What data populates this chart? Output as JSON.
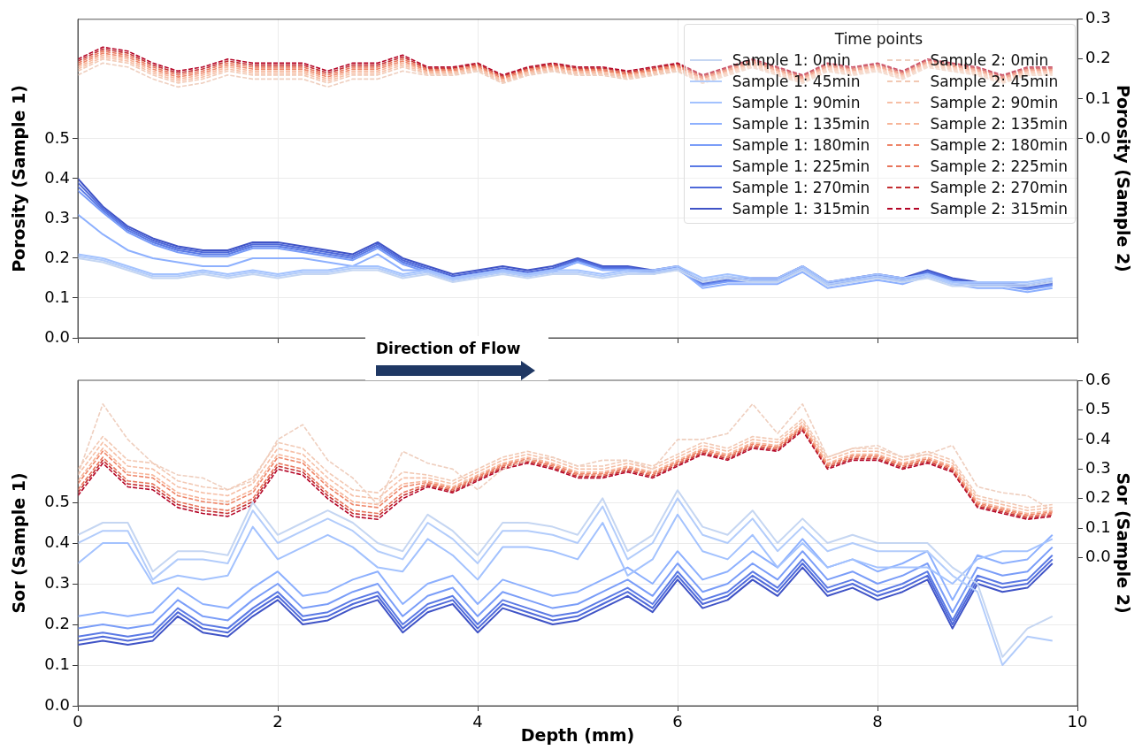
{
  "chart_data": [
    {
      "type": "line",
      "ylabel": "Porosity (Sample 1)",
      "y2label": "Porosity (Sample 2)",
      "legend": "top right",
      "legend_title": "Time points",
      "grid": true,
      "tick_labels": "y",
      "annotations": [
        "Direction of Flow"
      ],
      "xlim": [
        0,
        10
      ],
      "xticks": [
        0,
        2,
        4,
        6,
        8,
        10
      ],
      "ylim": [
        0,
        0.8
      ],
      "yticks": [
        {
          "value": 0,
          "label": "0.0"
        },
        0.1,
        0.2,
        0.3,
        0.4,
        0.5
      ],
      "y2lim": [
        -0.5,
        0.3
      ],
      "y2ticks": [
        {
          "value": 0,
          "label": "0.0"
        },
        0.1,
        0.2,
        0.3
      ],
      "x": [
        0,
        0.25,
        0.5,
        0.75,
        1,
        1.25,
        1.5,
        1.75,
        2,
        2.25,
        2.5,
        2.75,
        3,
        3.25,
        3.5,
        3.75,
        4,
        4.25,
        4.5,
        4.75,
        5,
        5.25,
        5.5,
        5.75,
        6,
        6.25,
        6.5,
        6.75,
        7,
        7.25,
        7.5,
        7.75,
        8,
        8.25,
        8.5,
        8.75,
        9,
        9.25,
        9.5,
        9.75
      ],
      "series": [
        {
          "name": "Sample 1: 0min",
          "color": "#c5d6f2",
          "axis": "y",
          "line_style": "solid",
          "values": [
            0.2,
            0.19,
            0.17,
            0.15,
            0.15,
            0.16,
            0.15,
            0.16,
            0.15,
            0.16,
            0.16,
            0.17,
            0.17,
            0.15,
            0.16,
            0.14,
            0.15,
            0.16,
            0.15,
            0.16,
            0.16,
            0.15,
            0.16,
            0.16,
            0.17,
            0.14,
            0.15,
            0.14,
            0.14,
            0.17,
            0.13,
            0.14,
            0.15,
            0.14,
            0.15,
            0.13,
            0.13,
            0.13,
            0.13,
            0.14
          ]
        },
        {
          "name": "Sample 1: 45min",
          "color": "#b2ccfb",
          "axis": "y",
          "line_style": "solid",
          "values": [
            0.205,
            0.195,
            0.175,
            0.155,
            0.155,
            0.165,
            0.155,
            0.165,
            0.155,
            0.165,
            0.165,
            0.175,
            0.175,
            0.155,
            0.165,
            0.145,
            0.155,
            0.165,
            0.155,
            0.165,
            0.165,
            0.155,
            0.165,
            0.165,
            0.175,
            0.145,
            0.155,
            0.145,
            0.145,
            0.175,
            0.135,
            0.145,
            0.155,
            0.145,
            0.155,
            0.135,
            0.135,
            0.135,
            0.135,
            0.145
          ]
        },
        {
          "name": "Sample 1: 90min",
          "color": "#a3c2fe",
          "axis": "y",
          "line_style": "solid",
          "values": [
            0.21,
            0.2,
            0.18,
            0.16,
            0.16,
            0.17,
            0.16,
            0.17,
            0.16,
            0.17,
            0.17,
            0.18,
            0.18,
            0.16,
            0.17,
            0.15,
            0.16,
            0.17,
            0.16,
            0.17,
            0.17,
            0.16,
            0.17,
            0.17,
            0.18,
            0.15,
            0.16,
            0.15,
            0.15,
            0.18,
            0.14,
            0.15,
            0.16,
            0.15,
            0.16,
            0.14,
            0.14,
            0.14,
            0.14,
            0.15
          ]
        },
        {
          "name": "Sample 1: 135min",
          "color": "#8db0fe",
          "axis": "y",
          "line_style": "solid",
          "values": [
            0.31,
            0.26,
            0.22,
            0.2,
            0.19,
            0.18,
            0.18,
            0.2,
            0.2,
            0.2,
            0.19,
            0.18,
            0.21,
            0.17,
            0.17,
            0.15,
            0.16,
            0.17,
            0.16,
            0.17,
            0.19,
            0.17,
            0.17,
            0.16,
            0.175,
            0.125,
            0.135,
            0.135,
            0.135,
            0.165,
            0.125,
            0.135,
            0.145,
            0.135,
            0.155,
            0.135,
            0.125,
            0.125,
            0.115,
            0.125
          ]
        },
        {
          "name": "Sample 1: 180min",
          "color": "#7a9df8",
          "axis": "y",
          "line_style": "solid",
          "values": [
            0.37,
            0.315,
            0.265,
            0.235,
            0.215,
            0.205,
            0.205,
            0.225,
            0.225,
            0.215,
            0.205,
            0.195,
            0.225,
            0.185,
            0.165,
            0.145,
            0.155,
            0.165,
            0.155,
            0.165,
            0.191,
            0.171,
            0.171,
            0.161,
            0.171,
            0.131,
            0.141,
            0.141,
            0.141,
            0.171,
            0.131,
            0.141,
            0.151,
            0.141,
            0.161,
            0.141,
            0.131,
            0.131,
            0.121,
            0.131
          ]
        },
        {
          "name": "Sample 1: 225min",
          "color": "#5b7ae5",
          "axis": "y",
          "line_style": "solid",
          "values": [
            0.38,
            0.32,
            0.27,
            0.24,
            0.22,
            0.21,
            0.21,
            0.23,
            0.23,
            0.22,
            0.21,
            0.2,
            0.23,
            0.19,
            0.17,
            0.15,
            0.16,
            0.17,
            0.16,
            0.17,
            0.194,
            0.174,
            0.174,
            0.164,
            0.174,
            0.134,
            0.144,
            0.144,
            0.144,
            0.174,
            0.134,
            0.144,
            0.154,
            0.144,
            0.164,
            0.144,
            0.134,
            0.134,
            0.124,
            0.134
          ]
        },
        {
          "name": "Sample 1: 270min",
          "color": "#4f69d9",
          "axis": "y",
          "line_style": "solid",
          "values": [
            0.39,
            0.325,
            0.275,
            0.245,
            0.225,
            0.215,
            0.215,
            0.235,
            0.235,
            0.225,
            0.215,
            0.205,
            0.235,
            0.195,
            0.175,
            0.155,
            0.165,
            0.175,
            0.165,
            0.175,
            0.197,
            0.177,
            0.177,
            0.167,
            0.177,
            0.137,
            0.147,
            0.147,
            0.147,
            0.177,
            0.137,
            0.147,
            0.157,
            0.147,
            0.167,
            0.147,
            0.137,
            0.137,
            0.127,
            0.137
          ]
        },
        {
          "name": "Sample 1: 315min",
          "color": "#3f53c6",
          "axis": "y",
          "line_style": "solid",
          "values": [
            0.4,
            0.33,
            0.28,
            0.25,
            0.23,
            0.22,
            0.22,
            0.24,
            0.24,
            0.23,
            0.22,
            0.21,
            0.24,
            0.2,
            0.18,
            0.16,
            0.17,
            0.18,
            0.17,
            0.18,
            0.2,
            0.18,
            0.18,
            0.17,
            0.18,
            0.14,
            0.15,
            0.15,
            0.15,
            0.18,
            0.14,
            0.15,
            0.16,
            0.15,
            0.17,
            0.15,
            0.14,
            0.14,
            0.13,
            0.14
          ]
        },
        {
          "name": "Sample 2: 0min",
          "color": "#efcfbf",
          "axis": "y2",
          "line_style": "dashed",
          "values": [
            0.16,
            0.19,
            0.18,
            0.15,
            0.13,
            0.14,
            0.16,
            0.15,
            0.15,
            0.15,
            0.13,
            0.15,
            0.15,
            0.17,
            0.159,
            0.159,
            0.169,
            0.139,
            0.159,
            0.169,
            0.159,
            0.159,
            0.149,
            0.159,
            0.169,
            0.139,
            0.159,
            0.179,
            0.159,
            0.139,
            0.169,
            0.159,
            0.169,
            0.149,
            0.179,
            0.169,
            0.159,
            0.139,
            0.159,
            0.159
          ]
        },
        {
          "name": "Sample 2: 45min",
          "color": "#f2c9b4",
          "axis": "y2",
          "line_style": "dashed",
          "values": [
            0.17,
            0.2,
            0.19,
            0.16,
            0.14,
            0.15,
            0.17,
            0.16,
            0.16,
            0.16,
            0.14,
            0.16,
            0.16,
            0.18,
            0.162,
            0.162,
            0.172,
            0.142,
            0.162,
            0.172,
            0.162,
            0.162,
            0.152,
            0.162,
            0.172,
            0.142,
            0.162,
            0.182,
            0.162,
            0.142,
            0.172,
            0.162,
            0.172,
            0.152,
            0.182,
            0.172,
            0.162,
            0.142,
            0.162,
            0.162
          ]
        },
        {
          "name": "Sample 2: 90min",
          "color": "#f6bfa6",
          "axis": "y2",
          "line_style": "dashed",
          "values": [
            0.175,
            0.205,
            0.195,
            0.165,
            0.145,
            0.155,
            0.175,
            0.165,
            0.165,
            0.165,
            0.145,
            0.165,
            0.165,
            0.185,
            0.165,
            0.165,
            0.175,
            0.145,
            0.165,
            0.175,
            0.165,
            0.165,
            0.155,
            0.165,
            0.175,
            0.145,
            0.165,
            0.185,
            0.165,
            0.145,
            0.175,
            0.165,
            0.175,
            0.155,
            0.185,
            0.175,
            0.165,
            0.145,
            0.165,
            0.165
          ]
        },
        {
          "name": "Sample 2: 135min",
          "color": "#f7b599",
          "axis": "y2",
          "line_style": "dashed",
          "values": [
            0.18,
            0.21,
            0.2,
            0.17,
            0.15,
            0.16,
            0.18,
            0.17,
            0.17,
            0.17,
            0.15,
            0.17,
            0.17,
            0.19,
            0.168,
            0.168,
            0.178,
            0.148,
            0.168,
            0.178,
            0.168,
            0.168,
            0.158,
            0.168,
            0.178,
            0.148,
            0.168,
            0.188,
            0.168,
            0.148,
            0.178,
            0.168,
            0.178,
            0.158,
            0.188,
            0.178,
            0.168,
            0.148,
            0.168,
            0.168
          ]
        },
        {
          "name": "Sample 2: 180min",
          "color": "#ee8669",
          "axis": "y2",
          "line_style": "dashed",
          "values": [
            0.185,
            0.215,
            0.205,
            0.175,
            0.155,
            0.165,
            0.185,
            0.175,
            0.175,
            0.175,
            0.155,
            0.175,
            0.175,
            0.195,
            0.171,
            0.171,
            0.181,
            0.151,
            0.171,
            0.181,
            0.171,
            0.171,
            0.161,
            0.171,
            0.181,
            0.151,
            0.171,
            0.191,
            0.171,
            0.151,
            0.181,
            0.171,
            0.181,
            0.161,
            0.191,
            0.181,
            0.171,
            0.151,
            0.171,
            0.171
          ]
        },
        {
          "name": "Sample 2: 225min",
          "color": "#e8765c",
          "axis": "y2",
          "line_style": "dashed",
          "values": [
            0.19,
            0.22,
            0.21,
            0.18,
            0.16,
            0.17,
            0.19,
            0.18,
            0.18,
            0.18,
            0.16,
            0.18,
            0.18,
            0.2,
            0.174,
            0.174,
            0.184,
            0.154,
            0.174,
            0.184,
            0.174,
            0.174,
            0.164,
            0.174,
            0.184,
            0.154,
            0.174,
            0.194,
            0.174,
            0.154,
            0.184,
            0.174,
            0.184,
            0.164,
            0.194,
            0.184,
            0.174,
            0.154,
            0.174,
            0.174
          ]
        },
        {
          "name": "Sample 2: 270min",
          "color": "#c32e31",
          "axis": "y2",
          "line_style": "dashed",
          "values": [
            0.195,
            0.225,
            0.215,
            0.185,
            0.165,
            0.175,
            0.195,
            0.185,
            0.185,
            0.185,
            0.165,
            0.185,
            0.185,
            0.205,
            0.177,
            0.177,
            0.187,
            0.157,
            0.177,
            0.187,
            0.177,
            0.177,
            0.167,
            0.177,
            0.187,
            0.157,
            0.177,
            0.197,
            0.177,
            0.157,
            0.187,
            0.177,
            0.187,
            0.167,
            0.197,
            0.187,
            0.177,
            0.157,
            0.177,
            0.177
          ]
        },
        {
          "name": "Sample 2: 315min",
          "color": "#b40426",
          "axis": "y2",
          "line_style": "dashed",
          "values": [
            0.2,
            0.23,
            0.22,
            0.19,
            0.17,
            0.18,
            0.2,
            0.19,
            0.19,
            0.19,
            0.17,
            0.19,
            0.19,
            0.21,
            0.18,
            0.18,
            0.19,
            0.16,
            0.18,
            0.19,
            0.18,
            0.18,
            0.17,
            0.18,
            0.19,
            0.16,
            0.18,
            0.2,
            0.18,
            0.16,
            0.19,
            0.18,
            0.19,
            0.17,
            0.2,
            0.19,
            0.18,
            0.16,
            0.18,
            0.18
          ]
        }
      ]
    },
    {
      "type": "line",
      "xlabel": "Depth (mm)",
      "ylabel": "Sor (Sample 1)",
      "y2label": "Sor (Sample 2)",
      "grid": true,
      "xlim": [
        0,
        10
      ],
      "xticks": [
        0,
        2,
        4,
        6,
        8,
        10
      ],
      "ylim": [
        0,
        0.8
      ],
      "yticks": [
        {
          "value": 0,
          "label": "0.0"
        },
        0.1,
        0.2,
        0.3,
        0.4,
        0.5
      ],
      "y2lim": [
        -0.5,
        0.6
      ],
      "y2ticks": [
        {
          "value": 0,
          "label": "0.0"
        },
        0.1,
        0.2,
        0.3,
        0.4,
        0.5,
        0.6
      ],
      "x": [
        0,
        0.25,
        0.5,
        0.75,
        1,
        1.25,
        1.5,
        1.75,
        2,
        2.25,
        2.5,
        2.75,
        3,
        3.25,
        3.5,
        3.75,
        4,
        4.25,
        4.5,
        4.75,
        5,
        5.25,
        5.5,
        5.75,
        6,
        6.25,
        6.5,
        6.75,
        7,
        7.25,
        7.5,
        7.75,
        8,
        8.25,
        8.5,
        8.75,
        9,
        9.25,
        9.5,
        9.75
      ],
      "series": [
        {
          "color": "#c5d6f2",
          "axis": "y",
          "line_style": "solid",
          "values": [
            0.42,
            0.45,
            0.45,
            0.33,
            0.38,
            0.38,
            0.37,
            0.5,
            0.42,
            0.45,
            0.48,
            0.45,
            0.4,
            0.38,
            0.47,
            0.43,
            0.37,
            0.45,
            0.45,
            0.44,
            0.42,
            0.51,
            0.38,
            0.42,
            0.53,
            0.44,
            0.42,
            0.48,
            0.4,
            0.46,
            0.4,
            0.42,
            0.4,
            0.4,
            0.4,
            0.34,
            0.3,
            0.12,
            0.19,
            0.22
          ]
        },
        {
          "color": "#b2ccfb",
          "axis": "y",
          "line_style": "solid",
          "values": [
            0.4,
            0.43,
            0.43,
            0.31,
            0.36,
            0.36,
            0.35,
            0.48,
            0.4,
            0.43,
            0.46,
            0.43,
            0.38,
            0.36,
            0.45,
            0.41,
            0.35,
            0.43,
            0.43,
            0.42,
            0.4,
            0.49,
            0.36,
            0.4,
            0.51,
            0.42,
            0.4,
            0.46,
            0.38,
            0.44,
            0.38,
            0.4,
            0.38,
            0.38,
            0.38,
            0.32,
            0.28,
            0.1,
            0.17,
            0.16
          ]
        },
        {
          "color": "#a3c2fe",
          "axis": "y",
          "line_style": "solid",
          "values": [
            0.35,
            0.4,
            0.4,
            0.3,
            0.32,
            0.31,
            0.32,
            0.44,
            0.36,
            0.39,
            0.42,
            0.39,
            0.34,
            0.33,
            0.41,
            0.37,
            0.31,
            0.39,
            0.39,
            0.38,
            0.36,
            0.45,
            0.32,
            0.36,
            0.47,
            0.38,
            0.36,
            0.42,
            0.34,
            0.4,
            0.34,
            0.36,
            0.34,
            0.34,
            0.34,
            0.3,
            0.36,
            0.38,
            0.38,
            0.41
          ]
        },
        {
          "color": "#8db0fe",
          "axis": "y",
          "line_style": "solid",
          "values": [
            0.22,
            0.23,
            0.22,
            0.23,
            0.29,
            0.25,
            0.24,
            0.29,
            0.33,
            0.27,
            0.28,
            0.31,
            0.33,
            0.25,
            0.3,
            0.32,
            0.25,
            0.31,
            0.29,
            0.27,
            0.28,
            0.31,
            0.34,
            0.3,
            0.38,
            0.31,
            0.33,
            0.38,
            0.34,
            0.41,
            0.34,
            0.36,
            0.33,
            0.35,
            0.38,
            0.26,
            0.37,
            0.35,
            0.36,
            0.42
          ]
        },
        {
          "color": "#7a9df8",
          "axis": "y",
          "line_style": "solid",
          "values": [
            0.19,
            0.2,
            0.19,
            0.2,
            0.26,
            0.22,
            0.21,
            0.26,
            0.3,
            0.24,
            0.25,
            0.28,
            0.3,
            0.22,
            0.27,
            0.29,
            0.22,
            0.28,
            0.26,
            0.24,
            0.25,
            0.28,
            0.31,
            0.27,
            0.35,
            0.28,
            0.3,
            0.35,
            0.31,
            0.38,
            0.31,
            0.33,
            0.3,
            0.32,
            0.35,
            0.23,
            0.34,
            0.32,
            0.33,
            0.39
          ]
        },
        {
          "color": "#5b7ae5",
          "axis": "y",
          "line_style": "solid",
          "values": [
            0.17,
            0.18,
            0.17,
            0.18,
            0.24,
            0.2,
            0.19,
            0.24,
            0.28,
            0.22,
            0.23,
            0.26,
            0.28,
            0.2,
            0.25,
            0.27,
            0.2,
            0.26,
            0.24,
            0.22,
            0.23,
            0.26,
            0.29,
            0.25,
            0.33,
            0.26,
            0.28,
            0.33,
            0.29,
            0.36,
            0.29,
            0.31,
            0.28,
            0.3,
            0.33,
            0.21,
            0.32,
            0.3,
            0.31,
            0.37
          ]
        },
        {
          "color": "#4f69d9",
          "axis": "y",
          "line_style": "solid",
          "values": [
            0.16,
            0.17,
            0.16,
            0.17,
            0.23,
            0.19,
            0.18,
            0.23,
            0.27,
            0.21,
            0.22,
            0.25,
            0.27,
            0.19,
            0.24,
            0.26,
            0.19,
            0.25,
            0.23,
            0.21,
            0.22,
            0.25,
            0.28,
            0.24,
            0.32,
            0.25,
            0.27,
            0.32,
            0.28,
            0.35,
            0.28,
            0.3,
            0.27,
            0.29,
            0.32,
            0.2,
            0.31,
            0.29,
            0.3,
            0.36
          ]
        },
        {
          "color": "#3f53c6",
          "axis": "y",
          "line_style": "solid",
          "values": [
            0.15,
            0.16,
            0.15,
            0.16,
            0.22,
            0.18,
            0.17,
            0.22,
            0.26,
            0.2,
            0.21,
            0.24,
            0.26,
            0.18,
            0.23,
            0.25,
            0.18,
            0.24,
            0.22,
            0.2,
            0.21,
            0.24,
            0.27,
            0.23,
            0.31,
            0.24,
            0.26,
            0.31,
            0.27,
            0.34,
            0.27,
            0.29,
            0.26,
            0.28,
            0.31,
            0.19,
            0.3,
            0.28,
            0.29,
            0.35
          ]
        },
        {
          "color": "#efcfbf",
          "axis": "y2",
          "line_style": "dashed",
          "values": [
            0.28,
            0.52,
            0.4,
            0.32,
            0.28,
            0.27,
            0.23,
            0.26,
            0.4,
            0.45,
            0.33,
            0.27,
            0.18,
            0.36,
            0.32,
            0.3,
            0.23,
            0.3,
            0.33,
            0.34,
            0.31,
            0.33,
            0.33,
            0.3,
            0.4,
            0.4,
            0.42,
            0.52,
            0.42,
            0.52,
            0.34,
            0.37,
            0.38,
            0.34,
            0.35,
            0.38,
            0.24,
            0.22,
            0.21,
            0.16
          ]
        },
        {
          "color": "#f2c9b4",
          "axis": "y2",
          "line_style": "dashed",
          "values": [
            0.3,
            0.41,
            0.33,
            0.32,
            0.26,
            0.24,
            0.23,
            0.27,
            0.39,
            0.37,
            0.29,
            0.23,
            0.22,
            0.29,
            0.28,
            0.26,
            0.3,
            0.34,
            0.36,
            0.34,
            0.31,
            0.31,
            0.33,
            0.31,
            0.35,
            0.39,
            0.37,
            0.41,
            0.4,
            0.47,
            0.34,
            0.37,
            0.37,
            0.34,
            0.36,
            0.33,
            0.21,
            0.19,
            0.17,
            0.18
          ]
        },
        {
          "color": "#f6bfa6",
          "axis": "y2",
          "line_style": "dashed",
          "values": [
            0.28,
            0.39,
            0.31,
            0.3,
            0.24,
            0.22,
            0.21,
            0.25,
            0.37,
            0.35,
            0.27,
            0.21,
            0.2,
            0.27,
            0.27,
            0.25,
            0.29,
            0.33,
            0.35,
            0.33,
            0.3,
            0.3,
            0.32,
            0.3,
            0.34,
            0.38,
            0.36,
            0.4,
            0.39,
            0.46,
            0.33,
            0.36,
            0.36,
            0.33,
            0.35,
            0.32,
            0.2,
            0.18,
            0.16,
            0.17
          ]
        },
        {
          "color": "#f7b599",
          "axis": "y2",
          "line_style": "dashed",
          "values": [
            0.26,
            0.37,
            0.29,
            0.28,
            0.22,
            0.2,
            0.19,
            0.23,
            0.35,
            0.33,
            0.25,
            0.19,
            0.18,
            0.25,
            0.26,
            0.24,
            0.28,
            0.32,
            0.34,
            0.32,
            0.29,
            0.29,
            0.31,
            0.29,
            0.33,
            0.37,
            0.35,
            0.39,
            0.38,
            0.45,
            0.32,
            0.35,
            0.35,
            0.32,
            0.34,
            0.31,
            0.19,
            0.17,
            0.15,
            0.16
          ]
        },
        {
          "color": "#ee8669",
          "axis": "y2",
          "line_style": "dashed",
          "values": [
            0.25,
            0.36,
            0.28,
            0.27,
            0.21,
            0.19,
            0.18,
            0.22,
            0.34,
            0.32,
            0.24,
            0.18,
            0.17,
            0.24,
            0.255,
            0.235,
            0.275,
            0.315,
            0.335,
            0.315,
            0.285,
            0.285,
            0.305,
            0.285,
            0.325,
            0.365,
            0.345,
            0.385,
            0.375,
            0.445,
            0.315,
            0.345,
            0.345,
            0.315,
            0.335,
            0.305,
            0.185,
            0.165,
            0.145,
            0.155
          ]
        },
        {
          "color": "#e8765c",
          "axis": "y2",
          "line_style": "dashed",
          "values": [
            0.23,
            0.34,
            0.26,
            0.25,
            0.19,
            0.17,
            0.16,
            0.2,
            0.32,
            0.3,
            0.22,
            0.16,
            0.15,
            0.22,
            0.25,
            0.23,
            0.27,
            0.31,
            0.33,
            0.31,
            0.28,
            0.28,
            0.3,
            0.28,
            0.32,
            0.36,
            0.34,
            0.38,
            0.37,
            0.44,
            0.31,
            0.34,
            0.34,
            0.31,
            0.33,
            0.3,
            0.18,
            0.16,
            0.14,
            0.15
          ]
        },
        {
          "color": "#c32e31",
          "axis": "y2",
          "line_style": "dashed",
          "values": [
            0.22,
            0.33,
            0.25,
            0.24,
            0.18,
            0.16,
            0.15,
            0.19,
            0.31,
            0.29,
            0.21,
            0.15,
            0.14,
            0.21,
            0.245,
            0.225,
            0.265,
            0.305,
            0.325,
            0.305,
            0.275,
            0.275,
            0.295,
            0.275,
            0.315,
            0.355,
            0.335,
            0.375,
            0.365,
            0.435,
            0.305,
            0.335,
            0.335,
            0.305,
            0.325,
            0.295,
            0.175,
            0.155,
            0.135,
            0.145
          ]
        },
        {
          "color": "#b40426",
          "axis": "y2",
          "line_style": "dashed",
          "values": [
            0.21,
            0.32,
            0.24,
            0.23,
            0.17,
            0.15,
            0.14,
            0.18,
            0.3,
            0.28,
            0.2,
            0.14,
            0.13,
            0.2,
            0.24,
            0.22,
            0.26,
            0.3,
            0.32,
            0.3,
            0.27,
            0.27,
            0.29,
            0.27,
            0.31,
            0.35,
            0.33,
            0.37,
            0.36,
            0.43,
            0.3,
            0.33,
            0.33,
            0.3,
            0.32,
            0.29,
            0.17,
            0.15,
            0.13,
            0.14
          ]
        }
      ]
    }
  ]
}
